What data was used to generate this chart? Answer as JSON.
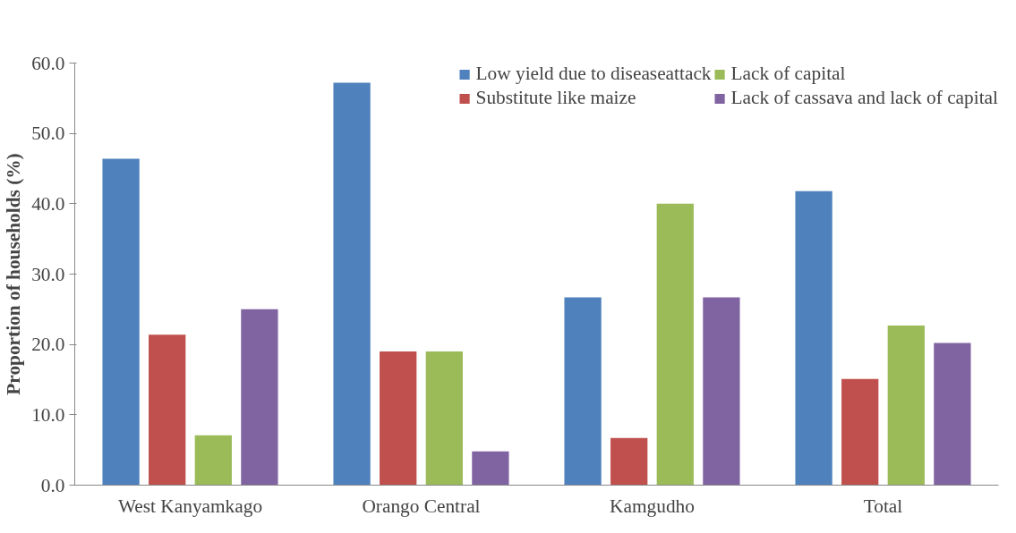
{
  "chart_data": {
    "type": "bar",
    "ylabel": "Proportion of households (%)",
    "categories": [
      "West Kanyamkago",
      "Orango Central",
      "Kamgudho",
      "Total"
    ],
    "series": [
      {
        "name": "Low yield due to diseaseattack",
        "color": "#4f81bd",
        "values": [
          46.4,
          57.2,
          26.7,
          41.8
        ]
      },
      {
        "name": "Substitute like maize",
        "color": "#c0504d",
        "values": [
          21.4,
          19.0,
          6.7,
          15.1
        ]
      },
      {
        "name": "Lack of capital",
        "color": "#9bbb59",
        "values": [
          7.1,
          19.0,
          40.0,
          22.7
        ]
      },
      {
        "name": "Lack of cassava and lack of capital",
        "color": "#8064a2",
        "values": [
          25.0,
          4.8,
          26.7,
          20.2
        ]
      }
    ],
    "ylim": [
      0,
      60
    ],
    "yticks": [
      {
        "value": 0,
        "label": "0.0"
      },
      {
        "value": 10,
        "label": "10.0"
      },
      {
        "value": 20,
        "label": "20.0"
      },
      {
        "value": 30,
        "label": "30.0"
      },
      {
        "value": 40,
        "label": "40.0"
      },
      {
        "value": 50,
        "label": "50.0"
      },
      {
        "value": 60,
        "label": "60.0"
      }
    ],
    "grid": false,
    "legend": "top"
  }
}
